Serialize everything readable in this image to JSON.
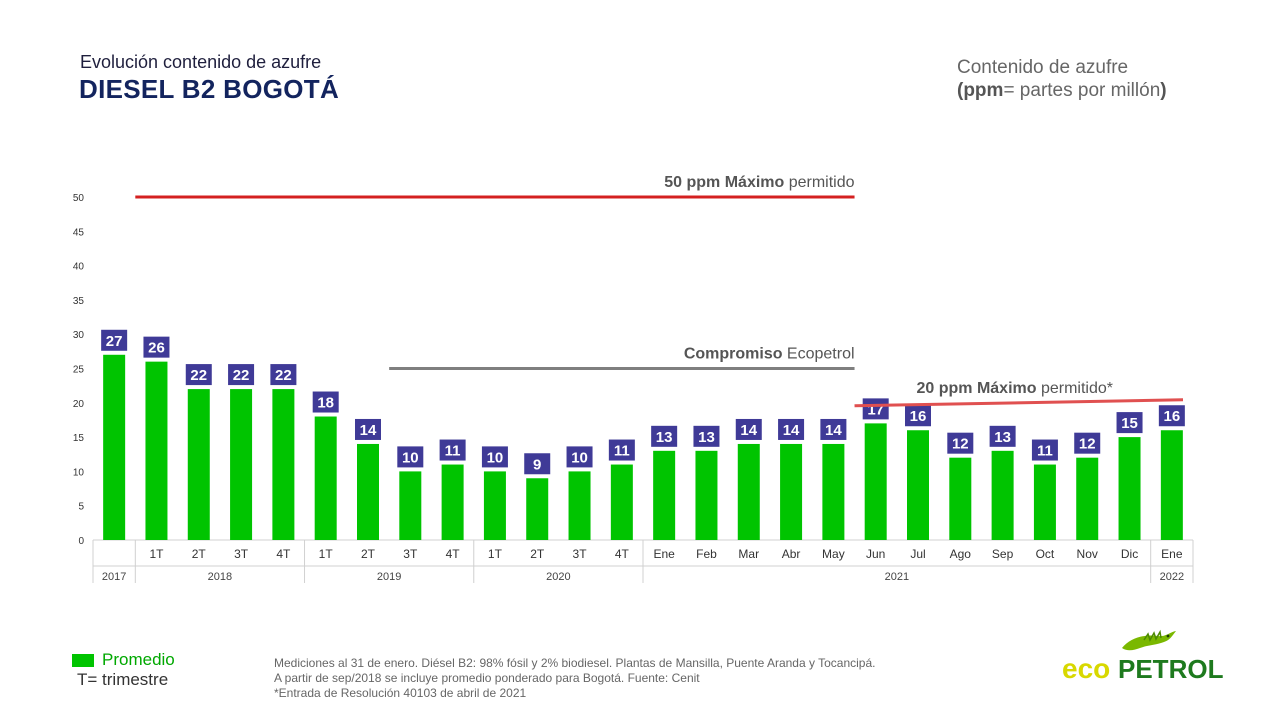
{
  "header": {
    "subtitle": "Evolución contenido de azufre",
    "title": "DIESEL B2 BOGOTÁ",
    "unit_line1": "Contenido de azufre",
    "unit_line2_bold1": "(ppm",
    "unit_line2_normal": "= partes por millón",
    "unit_line2_bold2": ")"
  },
  "chart_data": {
    "type": "bar",
    "categories": [
      "",
      "1T",
      "2T",
      "3T",
      "4T",
      "1T",
      "2T",
      "3T",
      "4T",
      "1T",
      "2T",
      "3T",
      "4T",
      "Ene",
      "Feb",
      "Mar",
      "Abr",
      "May",
      "Jun",
      "Jul",
      "Ago",
      "Sep",
      "Oct",
      "Nov",
      "Dic",
      "Ene"
    ],
    "series": [
      {
        "name": "Promedio",
        "values": [
          27,
          26,
          22,
          22,
          22,
          18,
          14,
          10,
          11,
          10,
          9,
          10,
          11,
          13,
          13,
          14,
          14,
          14,
          17,
          16,
          12,
          13,
          11,
          12,
          15,
          16
        ]
      }
    ],
    "year_groups": [
      {
        "label": "2017",
        "start": 0,
        "end": 0
      },
      {
        "label": "2018",
        "start": 1,
        "end": 4
      },
      {
        "label": "2019",
        "start": 5,
        "end": 8
      },
      {
        "label": "2020",
        "start": 9,
        "end": 12
      },
      {
        "label": "2021",
        "start": 13,
        "end": 24
      },
      {
        "label": "2022",
        "start": 25,
        "end": 25
      }
    ],
    "y_ticks": [
      0,
      5,
      10,
      15,
      20,
      25,
      30,
      35,
      40,
      45,
      50
    ],
    "ylim": [
      0,
      50
    ],
    "grid": false,
    "bar_color": "#00c400",
    "label_box_color": "#3f3a97",
    "reference_lines": [
      {
        "value": 50,
        "bold": "50 ppm Máximo",
        "normal": " permitido",
        "color": "#d42020",
        "from_index": 1,
        "to_index": 17
      },
      {
        "value": 25,
        "bold": "Compromiso",
        "normal": " Ecopetrol",
        "color": "#7f7f7f",
        "from_index": 7,
        "to_index": 17
      },
      {
        "value": 20,
        "bold": "20 ppm Máximo",
        "normal": " permitido*",
        "color": "#e05050",
        "from_index": 18,
        "to_index": 25
      }
    ]
  },
  "legend": {
    "series_label": "Promedio",
    "t_note": "T= trimestre"
  },
  "footnotes": [
    "Mediciones al 31 de enero. Diésel B2: 98% fósil y 2% biodiesel. Plantas de Mansilla, Puente Aranda y Tocancipá.",
    "A partir de sep/2018 se incluye promedio ponderado para Bogotá. Fuente: Cenit",
    "*Entrada de Resolución 40103 de abril de 2021"
  ],
  "logo": {
    "text_eco": "eco",
    "text_petrol": "PETROL",
    "icon": "iguana-icon"
  }
}
